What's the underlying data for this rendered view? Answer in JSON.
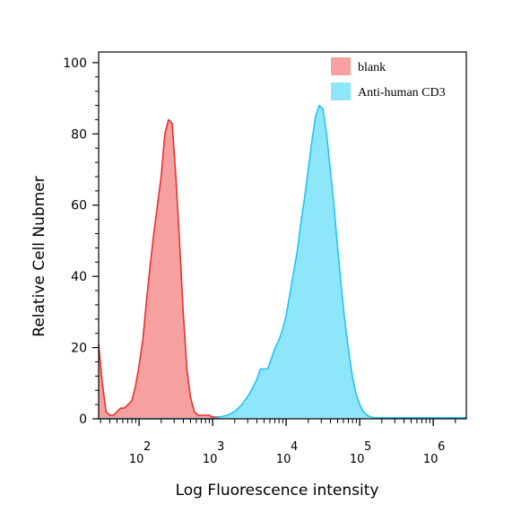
{
  "chart_data": {
    "type": "area",
    "xlabel": "Log Fluorescence intensity",
    "ylabel": "Relative Cell Nubmer",
    "xscale": "log",
    "xlim_log10": [
      1.45,
      6.45
    ],
    "ylim": [
      0,
      103
    ],
    "y_ticks": [
      "0",
      "20",
      "40",
      "60",
      "80",
      "100"
    ],
    "x_ticks": [
      {
        "base": "10",
        "exp": "2"
      },
      {
        "base": "10",
        "exp": "3"
      },
      {
        "base": "10",
        "exp": "4"
      },
      {
        "base": "10",
        "exp": "5"
      },
      {
        "base": "10",
        "exp": "6"
      }
    ],
    "grid": false,
    "legend_position": "top-right",
    "series": [
      {
        "name": "blank",
        "color": "#e83030",
        "fill": "#f7a0a0",
        "log10_x": [
          1.45,
          1.5,
          1.55,
          1.6,
          1.65,
          1.7,
          1.75,
          1.8,
          1.85,
          1.9,
          1.95,
          2.0,
          2.05,
          2.1,
          2.15,
          2.2,
          2.25,
          2.3,
          2.35,
          2.4,
          2.45,
          2.5,
          2.55,
          2.6,
          2.65,
          2.7,
          2.75,
          2.8,
          2.85,
          2.9,
          2.95,
          3.0,
          3.05,
          3.1,
          3.15,
          3.2,
          3.3,
          3.4,
          3.6,
          3.8,
          4.0,
          4.5,
          5.0,
          5.5,
          6.0,
          6.45
        ],
        "y": [
          21,
          10,
          2,
          1,
          1,
          2,
          3,
          3,
          4,
          5,
          9,
          15,
          22,
          33,
          43,
          52,
          60,
          68,
          80,
          84,
          83,
          68,
          50,
          30,
          14,
          6,
          2,
          1,
          1,
          1,
          1,
          0.5,
          0.5,
          0.5,
          0.5,
          0.5,
          0.3,
          0.3,
          0.3,
          0.3,
          0.3,
          0.3,
          0.3,
          0.3,
          0.3,
          0.3
        ]
      },
      {
        "name": "Anti-human CD3",
        "color": "#22c4f2",
        "fill": "#8ee6fa",
        "log10_x": [
          1.45,
          3.0,
          3.1,
          3.2,
          3.3,
          3.4,
          3.5,
          3.6,
          3.65,
          3.7,
          3.75,
          3.8,
          3.85,
          3.9,
          3.95,
          4.0,
          4.05,
          4.1,
          4.15,
          4.2,
          4.25,
          4.3,
          4.35,
          4.4,
          4.45,
          4.5,
          4.55,
          4.6,
          4.65,
          4.7,
          4.75,
          4.8,
          4.85,
          4.9,
          4.95,
          5.0,
          5.05,
          5.1,
          5.15,
          5.2,
          5.25,
          5.3,
          5.35,
          5.4,
          5.5,
          5.6,
          5.8,
          6.0,
          6.45
        ],
        "y": [
          0,
          0,
          0.5,
          1,
          2,
          4,
          7,
          11,
          14,
          14,
          14,
          17,
          20,
          22,
          25,
          29,
          35,
          41,
          47,
          55,
          62,
          70,
          78,
          85,
          88,
          87,
          80,
          70,
          60,
          48,
          37,
          27,
          19,
          12,
          7,
          4,
          2,
          1,
          0.5,
          0.3,
          0.3,
          0.3,
          0.3,
          0.3,
          0.3,
          0.3,
          0.3,
          0.3,
          0.3
        ]
      }
    ]
  }
}
